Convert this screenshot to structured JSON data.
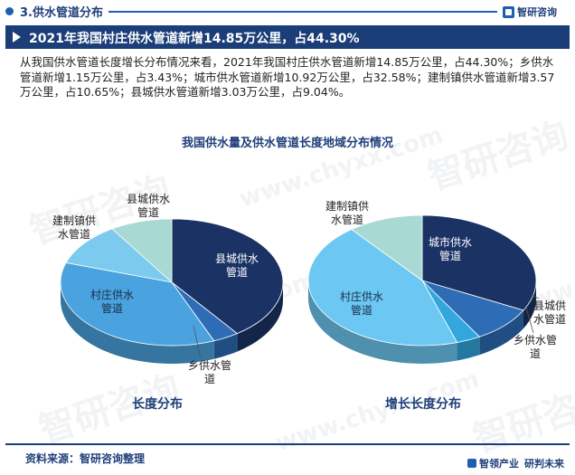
{
  "header": {
    "section_title": "3.供水管道分布",
    "brand": "智研咨询"
  },
  "banner": {
    "title": "2021年我国村庄供水管道新增14.85万公里，占44.30%"
  },
  "description": "从我国供水管道长度增长分布情况来看，2021年我国村庄供水管道新增14.85万公里，占44.30%；乡供水管道新增1.15万公里，占3.43%；城市供水管道新增10.92万公里，占32.58%；建制镇供水管道新增3.57万公里，占10.65%；县城供水管道新增3.03万公里，占9.04%。",
  "watermark": {
    "cn": "智研咨询",
    "en": "www.chyxx.com"
  },
  "chart_title": "我国供水量及供水管道长度地域分布情况",
  "chart_data": [
    {
      "type": "pie",
      "title": "长度分布",
      "slices": [
        {
          "name": "县城供水管道",
          "label_lines": [
            "县城供水",
            "管道"
          ],
          "value": 40.0,
          "color": "#1b3364"
        },
        {
          "name": "乡供水管道",
          "label_lines": [
            "乡供水管",
            "道"
          ],
          "value": 3.8,
          "color": "#2e6db5"
        },
        {
          "name": "村庄供水管道",
          "label_lines": [
            "村庄供水",
            "管道"
          ],
          "value": 36.2,
          "color": "#4aa3de"
        },
        {
          "name": "建制镇供水管道",
          "label_lines": [
            "建制镇供",
            "水管道"
          ],
          "value": 11.0,
          "color": "#7dcaef"
        },
        {
          "name": "县城供水管道",
          "label_lines": [
            "县城供水",
            "管道"
          ],
          "value": 9.0,
          "color": "#a9d9d3"
        }
      ]
    },
    {
      "type": "pie",
      "title": "增长长度分布",
      "slices": [
        {
          "name": "城市供水管道",
          "label_lines": [
            "城市供水",
            "管道"
          ],
          "value": 32.58,
          "color": "#1b3364"
        },
        {
          "name": "县城供水管道",
          "label_lines": [
            "县城供",
            "水管道"
          ],
          "value": 9.04,
          "color": "#2e6db5"
        },
        {
          "name": "乡供水管道",
          "label_lines": [
            "乡供水管",
            "道"
          ],
          "value": 3.43,
          "color": "#31a7de"
        },
        {
          "name": "村庄供水管道",
          "label_lines": [
            "村庄供水",
            "管道"
          ],
          "value": 44.3,
          "color": "#6cc8f2"
        },
        {
          "name": "建制镇供水管道",
          "label_lines": [
            "建制镇供",
            "水管道"
          ],
          "value": 10.65,
          "color": "#a9d9d3"
        }
      ]
    }
  ],
  "footer": {
    "source": "资料来源：智研咨询整理",
    "slogan_1": "智领产业",
    "slogan_2": "研判未来"
  }
}
